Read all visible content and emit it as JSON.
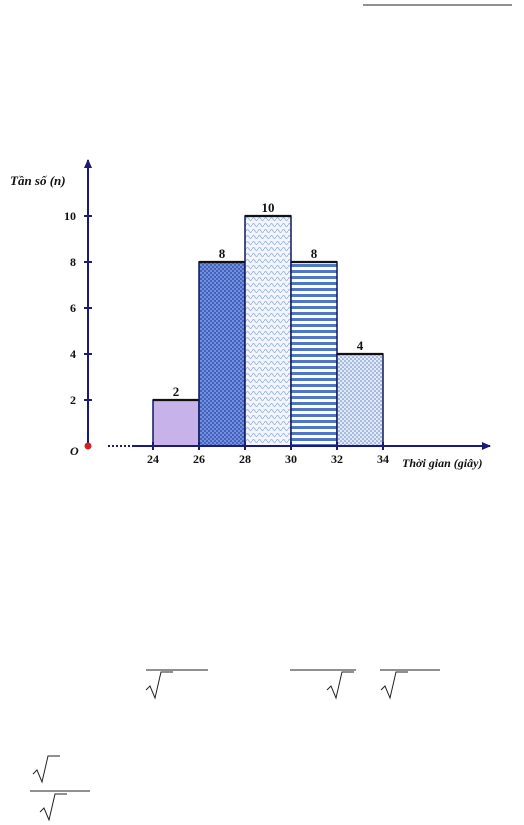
{
  "chart_data": {
    "type": "bar",
    "title": "",
    "ylabel": "Tần số (n)",
    "xlabel": "Thời gian (giây)",
    "origin_label": "O",
    "bin_edges": [
      24,
      26,
      28,
      30,
      32,
      34
    ],
    "bin_edge_labels": [
      "24",
      "26",
      "28",
      "30",
      "32",
      "34"
    ],
    "values": [
      2,
      8,
      10,
      8,
      4
    ],
    "value_labels": [
      "2",
      "8",
      "10",
      "8",
      "4"
    ],
    "yticks": [
      2,
      4,
      6,
      8,
      10
    ],
    "ytick_labels": [
      "2",
      "4",
      "6",
      "8",
      "10"
    ],
    "ylim": [
      0,
      12
    ],
    "fills": [
      "#c7b3ea",
      "#3f62c4",
      "#dde4ef",
      "#4f76c8",
      "#9ab2dc"
    ],
    "patterns": [
      "solid",
      "dots",
      "scales",
      "stripes",
      "dots-light"
    ],
    "axis_color": "#1a1a78",
    "origin_dot_color": "#d42020",
    "grid": false,
    "legend": "none"
  }
}
